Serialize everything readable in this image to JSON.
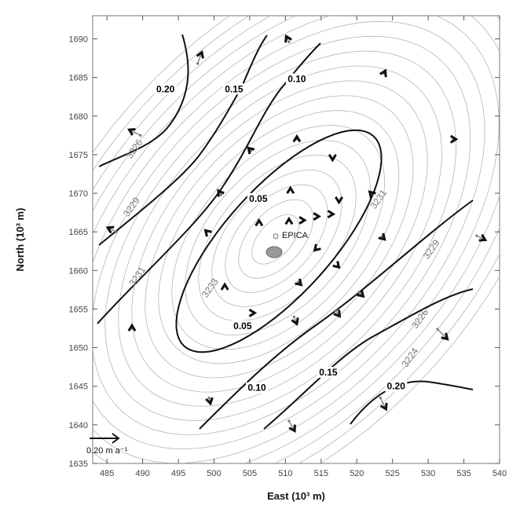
{
  "chart_data": {
    "type": "scatter",
    "xlabel": "East (10³ m)",
    "ylabel": "North (10³ m)",
    "xlim": [
      483,
      540
    ],
    "ylim": [
      1635,
      1693
    ],
    "xticks": [
      "485",
      "490",
      "495",
      "500",
      "505",
      "510",
      "515",
      "520",
      "525",
      "530",
      "535",
      "540"
    ],
    "yticks": [
      "1635",
      "1640",
      "1645",
      "1650",
      "1655",
      "1660",
      "1665",
      "1670",
      "1675",
      "1680",
      "1685",
      "1690"
    ],
    "site": {
      "label": "EPICA",
      "x": 510.0,
      "y": 1664.8
    },
    "scale_arrow": {
      "label": "0.20 m a⁻¹",
      "value": 0.2
    },
    "velocity_contour_labels": [
      {
        "text": "0.20",
        "x": 493.2,
        "y": 1683.2
      },
      {
        "text": "0.15",
        "x": 502.8,
        "y": 1683.2
      },
      {
        "text": "0.10",
        "x": 511.6,
        "y": 1684.5
      },
      {
        "text": "0.05",
        "x": 506.2,
        "y": 1669.0
      },
      {
        "text": "0.05",
        "x": 504.0,
        "y": 1652.5
      },
      {
        "text": "0.10",
        "x": 506.0,
        "y": 1644.5
      },
      {
        "text": "0.15",
        "x": 516.0,
        "y": 1646.5
      },
      {
        "text": "0.20",
        "x": 525.5,
        "y": 1644.7
      }
    ],
    "elevation_labels": [
      {
        "text": "3226",
        "x": 489.2,
        "y": 1675.5
      },
      {
        "text": "3229",
        "x": 488.8,
        "y": 1668.0
      },
      {
        "text": "3231",
        "x": 489.6,
        "y": 1659.0
      },
      {
        "text": "3233",
        "x": 499.8,
        "y": 1657.5
      },
      {
        "text": "3231",
        "x": 523.4,
        "y": 1669.0
      },
      {
        "text": "3229",
        "x": 530.8,
        "y": 1662.5
      },
      {
        "text": "3226",
        "x": 529.2,
        "y": 1653.5
      },
      {
        "text": "3224",
        "x": 527.8,
        "y": 1648.5
      }
    ],
    "velocity_arrows": [
      {
        "x": 510.5,
        "y": 1689.6,
        "u": -0.02,
        "v": 0.04
      },
      {
        "x": 497.7,
        "y": 1686.8,
        "u": 0.03,
        "v": 0.08
      },
      {
        "x": 489.7,
        "y": 1677.5,
        "u": -0.08,
        "v": 0.04
      },
      {
        "x": 505.2,
        "y": 1675.5,
        "u": -0.02,
        "v": 0.02
      },
      {
        "x": 511.6,
        "y": 1677.0,
        "u": 0.0,
        "v": 0.02
      },
      {
        "x": 516.6,
        "y": 1674.5,
        "u": 0.0,
        "v": -0.01
      },
      {
        "x": 523.8,
        "y": 1685.5,
        "u": 0.01,
        "v": 0.02
      },
      {
        "x": 533.5,
        "y": 1677.0,
        "u": 0.02,
        "v": 0.0
      },
      {
        "x": 501.0,
        "y": 1669.8,
        "u": -0.02,
        "v": 0.03
      },
      {
        "x": 510.7,
        "y": 1670.5,
        "u": 0.0,
        "v": 0.01
      },
      {
        "x": 517.5,
        "y": 1669.0,
        "u": 0.0,
        "v": -0.01
      },
      {
        "x": 522.0,
        "y": 1670.0,
        "u": -0.01,
        "v": 0.01
      },
      {
        "x": 486.3,
        "y": 1665.0,
        "u": -0.06,
        "v": 0.03
      },
      {
        "x": 499.0,
        "y": 1665.0,
        "u": -0.01,
        "v": 0.01
      },
      {
        "x": 506.3,
        "y": 1666.3,
        "u": 0.0,
        "v": 0.01
      },
      {
        "x": 510.5,
        "y": 1666.5,
        "u": 0.0,
        "v": 0.01
      },
      {
        "x": 512.5,
        "y": 1666.5,
        "u": 0.01,
        "v": 0.0
      },
      {
        "x": 514.5,
        "y": 1667.0,
        "u": 0.01,
        "v": 0.0
      },
      {
        "x": 516.5,
        "y": 1667.3,
        "u": 0.01,
        "v": 0.0
      },
      {
        "x": 514.3,
        "y": 1662.8,
        "u": -0.01,
        "v": -0.01
      },
      {
        "x": 517.3,
        "y": 1660.6,
        "u": 0.01,
        "v": -0.01
      },
      {
        "x": 523.5,
        "y": 1664.4,
        "u": 0.02,
        "v": -0.02
      },
      {
        "x": 536.8,
        "y": 1664.5,
        "u": 0.06,
        "v": -0.03
      },
      {
        "x": 501.5,
        "y": 1658.0,
        "u": 0.0,
        "v": 0.01
      },
      {
        "x": 511.8,
        "y": 1658.5,
        "u": 0.02,
        "v": -0.02
      },
      {
        "x": 520.3,
        "y": 1657.2,
        "u": 0.03,
        "v": -0.03
      },
      {
        "x": 505.5,
        "y": 1654.5,
        "u": 0.01,
        "v": 0.0
      },
      {
        "x": 511.2,
        "y": 1654.0,
        "u": 0.02,
        "v": -0.05
      },
      {
        "x": 517.0,
        "y": 1654.8,
        "u": 0.03,
        "v": -0.04
      },
      {
        "x": 488.5,
        "y": 1652.5,
        "u": 0.0,
        "v": 0.02
      },
      {
        "x": 531.3,
        "y": 1652.4,
        "u": 0.07,
        "v": -0.07
      },
      {
        "x": 499.3,
        "y": 1643.5,
        "u": 0.01,
        "v": -0.04
      },
      {
        "x": 523.3,
        "y": 1643.5,
        "u": 0.04,
        "v": -0.08
      },
      {
        "x": 510.5,
        "y": 1640.5,
        "u": 0.04,
        "v": -0.07
      }
    ]
  }
}
